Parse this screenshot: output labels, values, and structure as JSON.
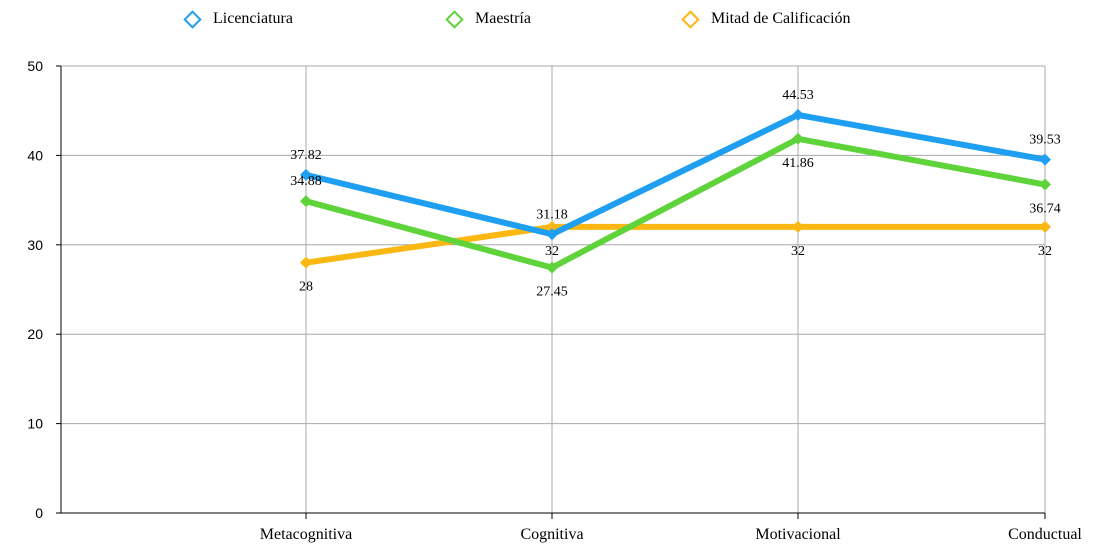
{
  "chart_data": {
    "type": "line",
    "categories": [
      "Metacognitiva",
      "Cognitiva",
      "Motivacional",
      "Conductual"
    ],
    "ylim": [
      0,
      50
    ],
    "yticks": [
      0,
      10,
      20,
      30,
      40,
      50
    ],
    "grid": true,
    "legend_position": "top",
    "series": [
      {
        "name": "Licenciatura",
        "color": "#1E9FF2",
        "values": [
          37.82,
          31.18,
          44.53,
          39.53
        ],
        "labels": [
          "37.82",
          "31.18",
          "44.53",
          "39.53"
        ]
      },
      {
        "name": "Maestría",
        "color": "#5ED33A",
        "values": [
          34.88,
          27.45,
          41.86,
          36.74
        ],
        "labels": [
          "34.88",
          "27.45",
          "41.86",
          "36.74"
        ]
      },
      {
        "name": "Mitad de Calificación",
        "color": "#FBB712",
        "values": [
          28,
          32,
          32,
          32
        ],
        "labels": [
          "28",
          "32",
          "32",
          "32"
        ]
      }
    ]
  }
}
